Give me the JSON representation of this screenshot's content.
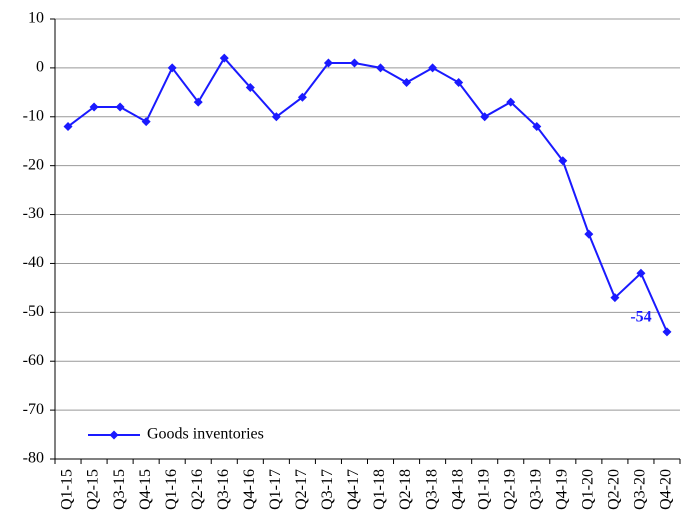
{
  "chart_data": {
    "type": "line",
    "categories": [
      "Q1-15",
      "Q2-15",
      "Q3-15",
      "Q4-15",
      "Q1-16",
      "Q2-16",
      "Q3-16",
      "Q4-16",
      "Q1-17",
      "Q2-17",
      "Q3-17",
      "Q4-17",
      "Q1-18",
      "Q2-18",
      "Q3-18",
      "Q4-18",
      "Q1-19",
      "Q2-19",
      "Q3-19",
      "Q4-19",
      "Q1-20",
      "Q2-20",
      "Q3-20",
      "Q4-20"
    ],
    "series": [
      {
        "name": "Goods inventories",
        "color": "#1a1aff",
        "values": [
          -12,
          -8,
          -8,
          -11,
          0,
          -7,
          2,
          -4,
          -10,
          -6,
          1,
          1,
          0,
          -3,
          0,
          -3,
          -10,
          -7,
          -12,
          -19,
          -34,
          -47,
          -42,
          -54
        ]
      }
    ],
    "ylim": [
      -80,
      10
    ],
    "yticks": [
      -80,
      -70,
      -60,
      -50,
      -40,
      -30,
      -20,
      -10,
      0,
      10
    ],
    "grid": true,
    "legend": "lower left",
    "annotation": "-54"
  }
}
